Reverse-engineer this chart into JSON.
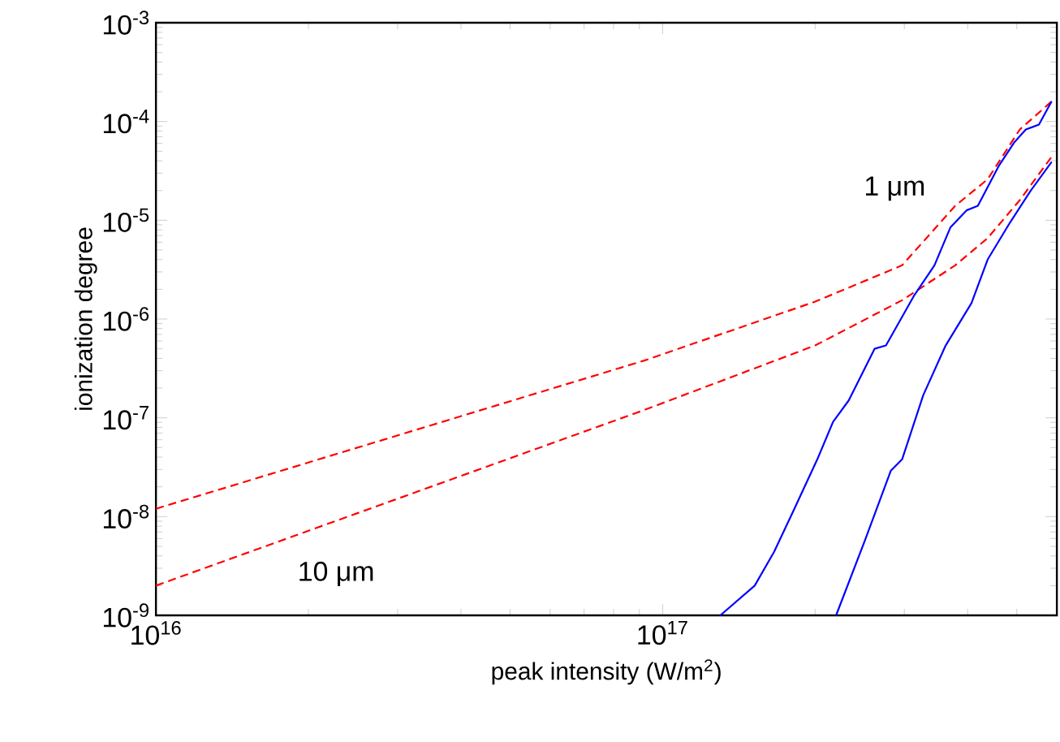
{
  "chart_data": {
    "type": "line",
    "xlabel": "peak intensity (W/m$^{2}$)",
    "ylabel": "ionization degree",
    "log": "xy",
    "xlim": [
      1e+16,
      6e+17
    ],
    "ylim": [
      1e-09,
      0.001
    ],
    "xticks": [
      {
        "value": 1e+16,
        "label": "10$^{16}$"
      },
      {
        "value": 1e+17,
        "label": "10$^{17}$"
      }
    ],
    "yticks": [
      {
        "value": 1e-09,
        "label": "10$^{-9}$"
      },
      {
        "value": 1e-08,
        "label": "10$^{-8}$"
      },
      {
        "value": 1e-07,
        "label": "10$^{-7}$"
      },
      {
        "value": 1e-06,
        "label": "10$^{-6}$"
      },
      {
        "value": 1e-05,
        "label": "10$^{-5}$"
      },
      {
        "value": 0.0001,
        "label": "10$^{-4}$"
      },
      {
        "value": 0.001,
        "label": "10$^{-3}$"
      }
    ],
    "marker": "none",
    "series": [
      {
        "color": "#ff0000",
        "line_style": "dashed",
        "x": [
          1e+16,
          9.2e+16,
          2e+17,
          2.97e+17,
          3.78e+17,
          4.38e+17,
          5.07e+17,
          5.86e+17
        ],
        "values": [
          1.2e-08,
          3.8e-07,
          1.5e-06,
          3.5e-06,
          1.4e-05,
          2.6e-05,
          8.3e-05,
          0.00016
        ]
      },
      {
        "color": "#ff0000",
        "line_style": "dashed",
        "x": [
          1e+16,
          9.2e+16,
          2e+17,
          2.97e+17,
          3.78e+17,
          4.38e+17,
          5.07e+17,
          5.86e+17
        ],
        "values": [
          2e-09,
          1.2e-07,
          5.4e-07,
          1.55e-06,
          3.5e-06,
          6.6e-06,
          1.6e-05,
          4.4e-05
        ]
      },
      {
        "color": "#0000ff",
        "line_style": "solid",
        "x": [
          1.3e+17,
          1.52e+17,
          1.66e+17,
          1.82e+17,
          2.02e+17,
          2.17e+17,
          2.33e+17,
          2.62e+17,
          2.76e+17,
          3.13e+17,
          3.44e+17,
          3.7e+17,
          3.98e+17,
          4.19e+17,
          4.6e+17,
          4.95e+17,
          5.21e+17,
          5.53e+17,
          5.86e+17
        ],
        "values": [
          1e-09,
          2e-09,
          4.4e-09,
          1.2e-08,
          3.8e-08,
          9.1e-08,
          1.5e-07,
          5e-07,
          5.4e-07,
          1.7e-06,
          3.5e-06,
          8.5e-06,
          1.26e-05,
          1.4e-05,
          3.5e-05,
          6.2e-05,
          8.3e-05,
          9.3e-05,
          0.00016
        ]
      },
      {
        "color": "#0000ff",
        "line_style": "solid",
        "x": [
          2.2e+17,
          2.51e+17,
          2.82e+17,
          2.97e+17,
          3.27e+17,
          3.62e+17,
          4.07e+17,
          4.38e+17,
          4.85e+17,
          5.33e+17,
          5.86e+17
        ],
        "values": [
          1e-09,
          5.8e-09,
          2.9e-08,
          3.8e-08,
          1.7e-07,
          5.4e-07,
          1.45e-06,
          4e-06,
          9.5e-06,
          2e-05,
          3.9e-05
        ]
      }
    ],
    "annotations": [
      "1 μm",
      "10 μm"
    ]
  }
}
